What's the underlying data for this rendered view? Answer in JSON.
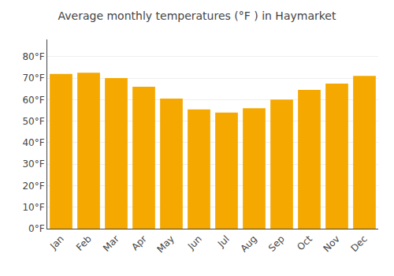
{
  "chart_data": {
    "type": "bar",
    "title": "Average monthly temperatures (°F ) in Haymarket",
    "categories": [
      "Jan",
      "Feb",
      "Mar",
      "Apr",
      "May",
      "Jun",
      "Jul",
      "Aug",
      "Sep",
      "Oct",
      "Nov",
      "Dec"
    ],
    "values": [
      72,
      72.5,
      70,
      66,
      60.5,
      55.5,
      54,
      56,
      60,
      64.5,
      67.5,
      71
    ],
    "color": "#F5A800",
    "ylim": [
      0,
      88
    ],
    "yticks": [
      {
        "value": 0,
        "label": "0°F"
      },
      {
        "value": 10,
        "label": "10°F"
      },
      {
        "value": 20,
        "label": "20°F"
      },
      {
        "value": 30,
        "label": "30°F"
      },
      {
        "value": 40,
        "label": "40°F"
      },
      {
        "value": 50,
        "label": "50°F"
      },
      {
        "value": 60,
        "label": "60°F"
      },
      {
        "value": 70,
        "label": "70°F"
      },
      {
        "value": 80,
        "label": "80°F"
      }
    ],
    "grid": true
  }
}
